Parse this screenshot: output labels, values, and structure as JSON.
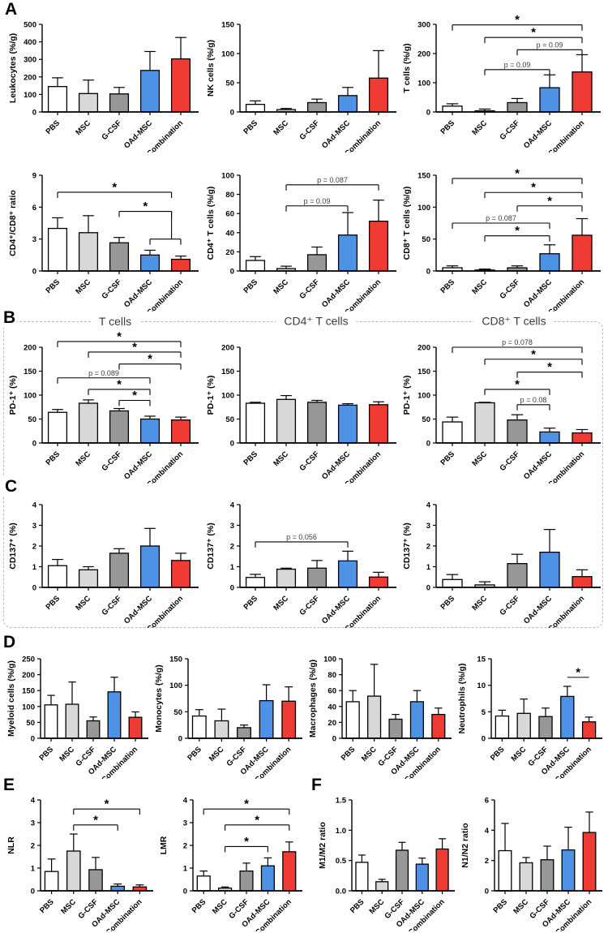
{
  "categories": [
    "PBS",
    "MSC",
    "G-CSF",
    "OAd-MSC",
    "Combination"
  ],
  "panel_labels": {
    "a": "A",
    "b": "B",
    "c": "C",
    "d": "D",
    "e": "E",
    "f": "F"
  },
  "column_headers": [
    "T cells",
    "CD4⁺ T cells",
    "CD8⁺ T cells"
  ],
  "colors": {
    "bar_fills": [
      "#FFFFFF",
      "#D8D8D8",
      "#979797",
      "#4E92E6",
      "#EF3B33"
    ],
    "bar_stroke": "#000000",
    "error_bar": "#000000",
    "sig_line": "#000000",
    "p_text": "#3a3a3a",
    "dashed_border": "#B9B9B9"
  },
  "chart_data": [
    {
      "id": "leukocytes",
      "panel": "A",
      "type": "bar",
      "ylabel": "Leukocytes (%/g)",
      "ylim": [
        0,
        500
      ],
      "yticks": [
        "0",
        "100",
        "200",
        "300",
        "400",
        "500"
      ],
      "values": [
        145,
        105,
        103,
        237,
        303
      ],
      "errors_upper": [
        195,
        182,
        140,
        345,
        425
      ],
      "sig": []
    },
    {
      "id": "nk",
      "panel": "A",
      "type": "bar",
      "ylabel": "NK cells (%/g)",
      "ylim": [
        0,
        150
      ],
      "yticks": [
        "0",
        "50",
        "100",
        "150"
      ],
      "values": [
        13,
        4,
        16,
        28,
        58
      ],
      "errors_upper": [
        19,
        6,
        22,
        42,
        105
      ],
      "sig": []
    },
    {
      "id": "t_cells",
      "panel": "A",
      "type": "bar",
      "ylabel": "T cells (%/g)",
      "ylim": [
        0,
        300
      ],
      "yticks": [
        "0",
        "100",
        "200",
        "300"
      ],
      "values": [
        20,
        4,
        32,
        83,
        137
      ],
      "errors_upper": [
        28,
        10,
        46,
        127,
        196
      ],
      "sig": [
        {
          "x1": 0,
          "x2": 4,
          "y": 298,
          "label": "*"
        },
        {
          "x1": 1,
          "x2": 4,
          "y": 255,
          "label": "*"
        },
        {
          "x1": 2,
          "x2": 4,
          "y": 213,
          "label": "p = 0.09"
        },
        {
          "x1": 1,
          "x2": 3,
          "y": 145,
          "label": "p = 0.09"
        }
      ]
    },
    {
      "id": "cd4_cd8_ratio",
      "panel": "A",
      "type": "bar",
      "ylabel": "CD4⁺/CD8⁺ ratio",
      "ylim": [
        0,
        9
      ],
      "yticks": [
        "0",
        "3",
        "6",
        "9"
      ],
      "values": [
        4.0,
        3.6,
        2.65,
        1.5,
        1.1
      ],
      "errors_upper": [
        5.0,
        5.2,
        3.15,
        1.95,
        1.4
      ],
      "sig": [
        {
          "x1": 0,
          "x2": 3.7,
          "y": 7.4,
          "label": "*"
        },
        {
          "x1": 2,
          "x2": 3.7,
          "y": 5.6,
          "label": "*"
        },
        {
          "x1": 3,
          "x2": 4,
          "y": 3.0,
          "label": ""
        }
      ],
      "stems": [
        {
          "x": 3.7,
          "y1": 5.6,
          "y2": 3.0
        }
      ]
    },
    {
      "id": "cd4_t",
      "panel": "A",
      "type": "bar",
      "ylabel": "CD4⁺ T cells (%/g)",
      "ylim": [
        0,
        100
      ],
      "yticks": [
        "0",
        "20",
        "40",
        "60",
        "80",
        "100"
      ],
      "values": [
        11,
        2.5,
        17,
        37.5,
        52
      ],
      "errors_upper": [
        15,
        5,
        25,
        61,
        74
      ],
      "sig": [
        {
          "x1": 1,
          "x2": 4,
          "y": 90,
          "label": "p = 0.087"
        },
        {
          "x1": 1,
          "x2": 3,
          "y": 68,
          "label": "p = 0.09"
        }
      ]
    },
    {
      "id": "cd8_t",
      "panel": "A",
      "type": "bar",
      "ylabel": "CD8⁺ T cells (%/g)",
      "ylim": [
        0,
        150
      ],
      "yticks": [
        "0",
        "50",
        "100",
        "150"
      ],
      "values": [
        5,
        1.5,
        5,
        27,
        56
      ],
      "errors_upper": [
        8,
        3,
        8,
        41,
        82
      ],
      "sig": [
        {
          "x1": 0,
          "x2": 4,
          "y": 145,
          "label": "*"
        },
        {
          "x1": 1,
          "x2": 4,
          "y": 123,
          "label": "*"
        },
        {
          "x1": 2,
          "x2": 4,
          "y": 102,
          "label": "*"
        },
        {
          "x1": 0,
          "x2": 3,
          "y": 75,
          "label": "p = 0.087"
        },
        {
          "x1": 1,
          "x2": 3,
          "y": 55,
          "label": "*"
        }
      ]
    },
    {
      "id": "pd1_t",
      "panel": "B",
      "type": "bar",
      "ylabel": "PD-1⁺ (%)",
      "ylim": [
        0,
        200
      ],
      "yticks": [
        "0",
        "50",
        "100",
        "150",
        "200"
      ],
      "values": [
        64,
        83,
        67,
        50,
        48
      ],
      "errors_upper": [
        70,
        90,
        72,
        56,
        54
      ],
      "sig": [
        {
          "x1": 0,
          "x2": 4,
          "y": 212,
          "label": "*"
        },
        {
          "x1": 1,
          "x2": 4,
          "y": 190,
          "label": "*"
        },
        {
          "x1": 2,
          "x2": 4,
          "y": 165,
          "label": "*"
        },
        {
          "x1": 0,
          "x2": 3,
          "y": 136,
          "label": "p = 0.089"
        },
        {
          "x1": 1,
          "x2": 3,
          "y": 112,
          "label": "*"
        },
        {
          "x1": 2,
          "x2": 3,
          "y": 89,
          "label": "*"
        }
      ]
    },
    {
      "id": "pd1_cd4",
      "panel": "B",
      "type": "bar",
      "ylabel": "PD-1⁺ (%)",
      "ylim": [
        0,
        200
      ],
      "yticks": [
        "0",
        "50",
        "100",
        "150",
        "200"
      ],
      "values": [
        83,
        91,
        85,
        79,
        80
      ],
      "errors_upper": [
        85,
        99,
        89,
        82,
        86
      ],
      "sig": []
    },
    {
      "id": "pd1_cd8",
      "panel": "B",
      "type": "bar",
      "ylabel": "PD-1⁺ (%)",
      "ylim": [
        0,
        200
      ],
      "yticks": [
        "0",
        "50",
        "100",
        "150",
        "200"
      ],
      "values": [
        44,
        84,
        48,
        23,
        21
      ],
      "errors_upper": [
        54,
        85,
        59,
        31,
        28
      ],
      "sig": [
        {
          "x1": 0,
          "x2": 4,
          "y": 200,
          "label": "p = 0.078"
        },
        {
          "x1": 1,
          "x2": 4,
          "y": 175,
          "label": "*"
        },
        {
          "x1": 2,
          "x2": 4,
          "y": 148,
          "label": "*"
        },
        {
          "x1": 1,
          "x2": 3,
          "y": 112,
          "label": "*"
        },
        {
          "x1": 2,
          "x2": 3,
          "y": 80,
          "label": "p = 0.08"
        }
      ]
    },
    {
      "id": "cd137_t",
      "panel": "C",
      "type": "bar",
      "ylabel": "CD137⁺ (%)",
      "ylim": [
        0,
        4
      ],
      "yticks": [
        "0",
        "1",
        "2",
        "3",
        "4"
      ],
      "values": [
        1.05,
        0.85,
        1.65,
        2.0,
        1.3
      ],
      "errors_upper": [
        1.35,
        1.0,
        1.87,
        2.85,
        1.65
      ],
      "sig": []
    },
    {
      "id": "cd137_cd4",
      "panel": "C",
      "type": "bar",
      "ylabel": "CD137⁺ (%)",
      "ylim": [
        0,
        4
      ],
      "yticks": [
        "0",
        "1",
        "2",
        "3",
        "4"
      ],
      "values": [
        0.48,
        0.88,
        0.93,
        1.28,
        0.5
      ],
      "errors_upper": [
        0.63,
        0.93,
        1.3,
        1.75,
        0.73
      ],
      "sig": [
        {
          "x1": 0,
          "x2": 3,
          "y": 2.2,
          "label": "p = 0.056"
        }
      ]
    },
    {
      "id": "cd137_cd8",
      "panel": "C",
      "type": "bar",
      "ylabel": "CD137⁺ (%)",
      "ylim": [
        0,
        4
      ],
      "yticks": [
        "0",
        "1",
        "2",
        "3",
        "4"
      ],
      "values": [
        0.38,
        0.12,
        1.15,
        1.7,
        0.52
      ],
      "errors_upper": [
        0.62,
        0.27,
        1.6,
        2.8,
        0.85
      ],
      "sig": []
    },
    {
      "id": "myeloid",
      "panel": "D",
      "type": "bar",
      "ylabel": "Myeloid cells (%/g)",
      "ylim": [
        0,
        250
      ],
      "yticks": [
        "0",
        "50",
        "100",
        "150",
        "200",
        "250"
      ],
      "values": [
        105,
        107,
        55,
        146,
        66
      ],
      "errors_upper": [
        135,
        177,
        67,
        192,
        83
      ],
      "sig": []
    },
    {
      "id": "monocytes",
      "panel": "D",
      "type": "bar",
      "ylabel": "Monocytes (%/g)",
      "ylim": [
        0,
        150
      ],
      "yticks": [
        "0",
        "50",
        "100",
        "150"
      ],
      "values": [
        42,
        33,
        20,
        71,
        70
      ],
      "errors_upper": [
        54,
        55,
        25,
        101,
        97
      ],
      "sig": []
    },
    {
      "id": "macrophages",
      "panel": "D",
      "type": "bar",
      "ylabel": "Macrophages (%/g)",
      "ylim": [
        0,
        100
      ],
      "yticks": [
        "0",
        "20",
        "40",
        "60",
        "80",
        "100"
      ],
      "values": [
        46,
        53,
        24,
        46,
        30
      ],
      "errors_upper": [
        60,
        93,
        30,
        60,
        38
      ],
      "sig": []
    },
    {
      "id": "neutrophils",
      "panel": "D",
      "type": "bar",
      "ylabel": "Neutrophils (%/g)",
      "ylim": [
        0,
        15
      ],
      "yticks": [
        "0",
        "5",
        "10",
        "15"
      ],
      "values": [
        4.2,
        4.7,
        4.1,
        7.9,
        3.1
      ],
      "errors_upper": [
        5.3,
        7.4,
        5.7,
        9.8,
        4.0
      ],
      "sig": [
        {
          "x1": 3,
          "x2": 4,
          "y": 11.5,
          "label": "*",
          "ticks": false
        }
      ]
    },
    {
      "id": "nlr",
      "panel": "E",
      "type": "bar",
      "ylabel": "NLR",
      "ylim": [
        0,
        4
      ],
      "yticks": [
        "0",
        "1",
        "2",
        "3",
        "4"
      ],
      "values": [
        0.85,
        1.75,
        0.93,
        0.2,
        0.17
      ],
      "errors_upper": [
        1.4,
        2.5,
        1.47,
        0.3,
        0.26
      ],
      "sig": [
        {
          "x1": 1,
          "x2": 4,
          "y": 3.6,
          "label": "*"
        },
        {
          "x1": 1,
          "x2": 3,
          "y": 2.9,
          "label": "*"
        }
      ]
    },
    {
      "id": "lmr",
      "panel": "E",
      "type": "bar",
      "ylabel": "LMR",
      "ylim": [
        0,
        4
      ],
      "yticks": [
        "0",
        "1",
        "2",
        "3",
        "4"
      ],
      "values": [
        0.65,
        0.12,
        0.87,
        1.1,
        1.72
      ],
      "errors_upper": [
        0.87,
        0.17,
        1.22,
        1.45,
        2.15
      ],
      "sig": [
        {
          "x1": 0,
          "x2": 4,
          "y": 3.6,
          "label": "*"
        },
        {
          "x1": 1,
          "x2": 4,
          "y": 2.9,
          "label": "*"
        },
        {
          "x1": 1,
          "x2": 3,
          "y": 1.95,
          "label": "*"
        }
      ]
    },
    {
      "id": "m1_m2",
      "panel": "F",
      "type": "bar",
      "ylabel": "M1/M2 ratio",
      "ylim": [
        0,
        1.5
      ],
      "yticks": [
        "0.0",
        "0.5",
        "1.0",
        "1.5"
      ],
      "values": [
        0.47,
        0.15,
        0.67,
        0.44,
        0.69
      ],
      "errors_upper": [
        0.59,
        0.19,
        0.8,
        0.54,
        0.86
      ],
      "sig": []
    },
    {
      "id": "n1_n2",
      "panel": "F",
      "type": "bar",
      "ylabel": "N1/N2 ratio",
      "ylim": [
        0,
        6
      ],
      "yticks": [
        "0",
        "2",
        "4",
        "6"
      ],
      "values": [
        2.65,
        1.85,
        2.05,
        2.7,
        3.85
      ],
      "errors_upper": [
        4.45,
        2.2,
        2.95,
        4.2,
        5.2
      ],
      "sig": []
    }
  ]
}
